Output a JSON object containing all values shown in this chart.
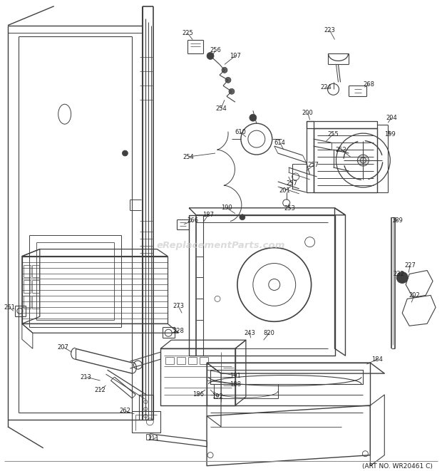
{
  "art_no": "(ART NO. WR20461 C)",
  "bg_color": "#ffffff",
  "lc": "#404040",
  "tc": "#202020",
  "wm_color": "#cccccc",
  "watermark": "eReplacementParts.com",
  "figsize": [
    6.2,
    6.61
  ],
  "dpi": 100
}
